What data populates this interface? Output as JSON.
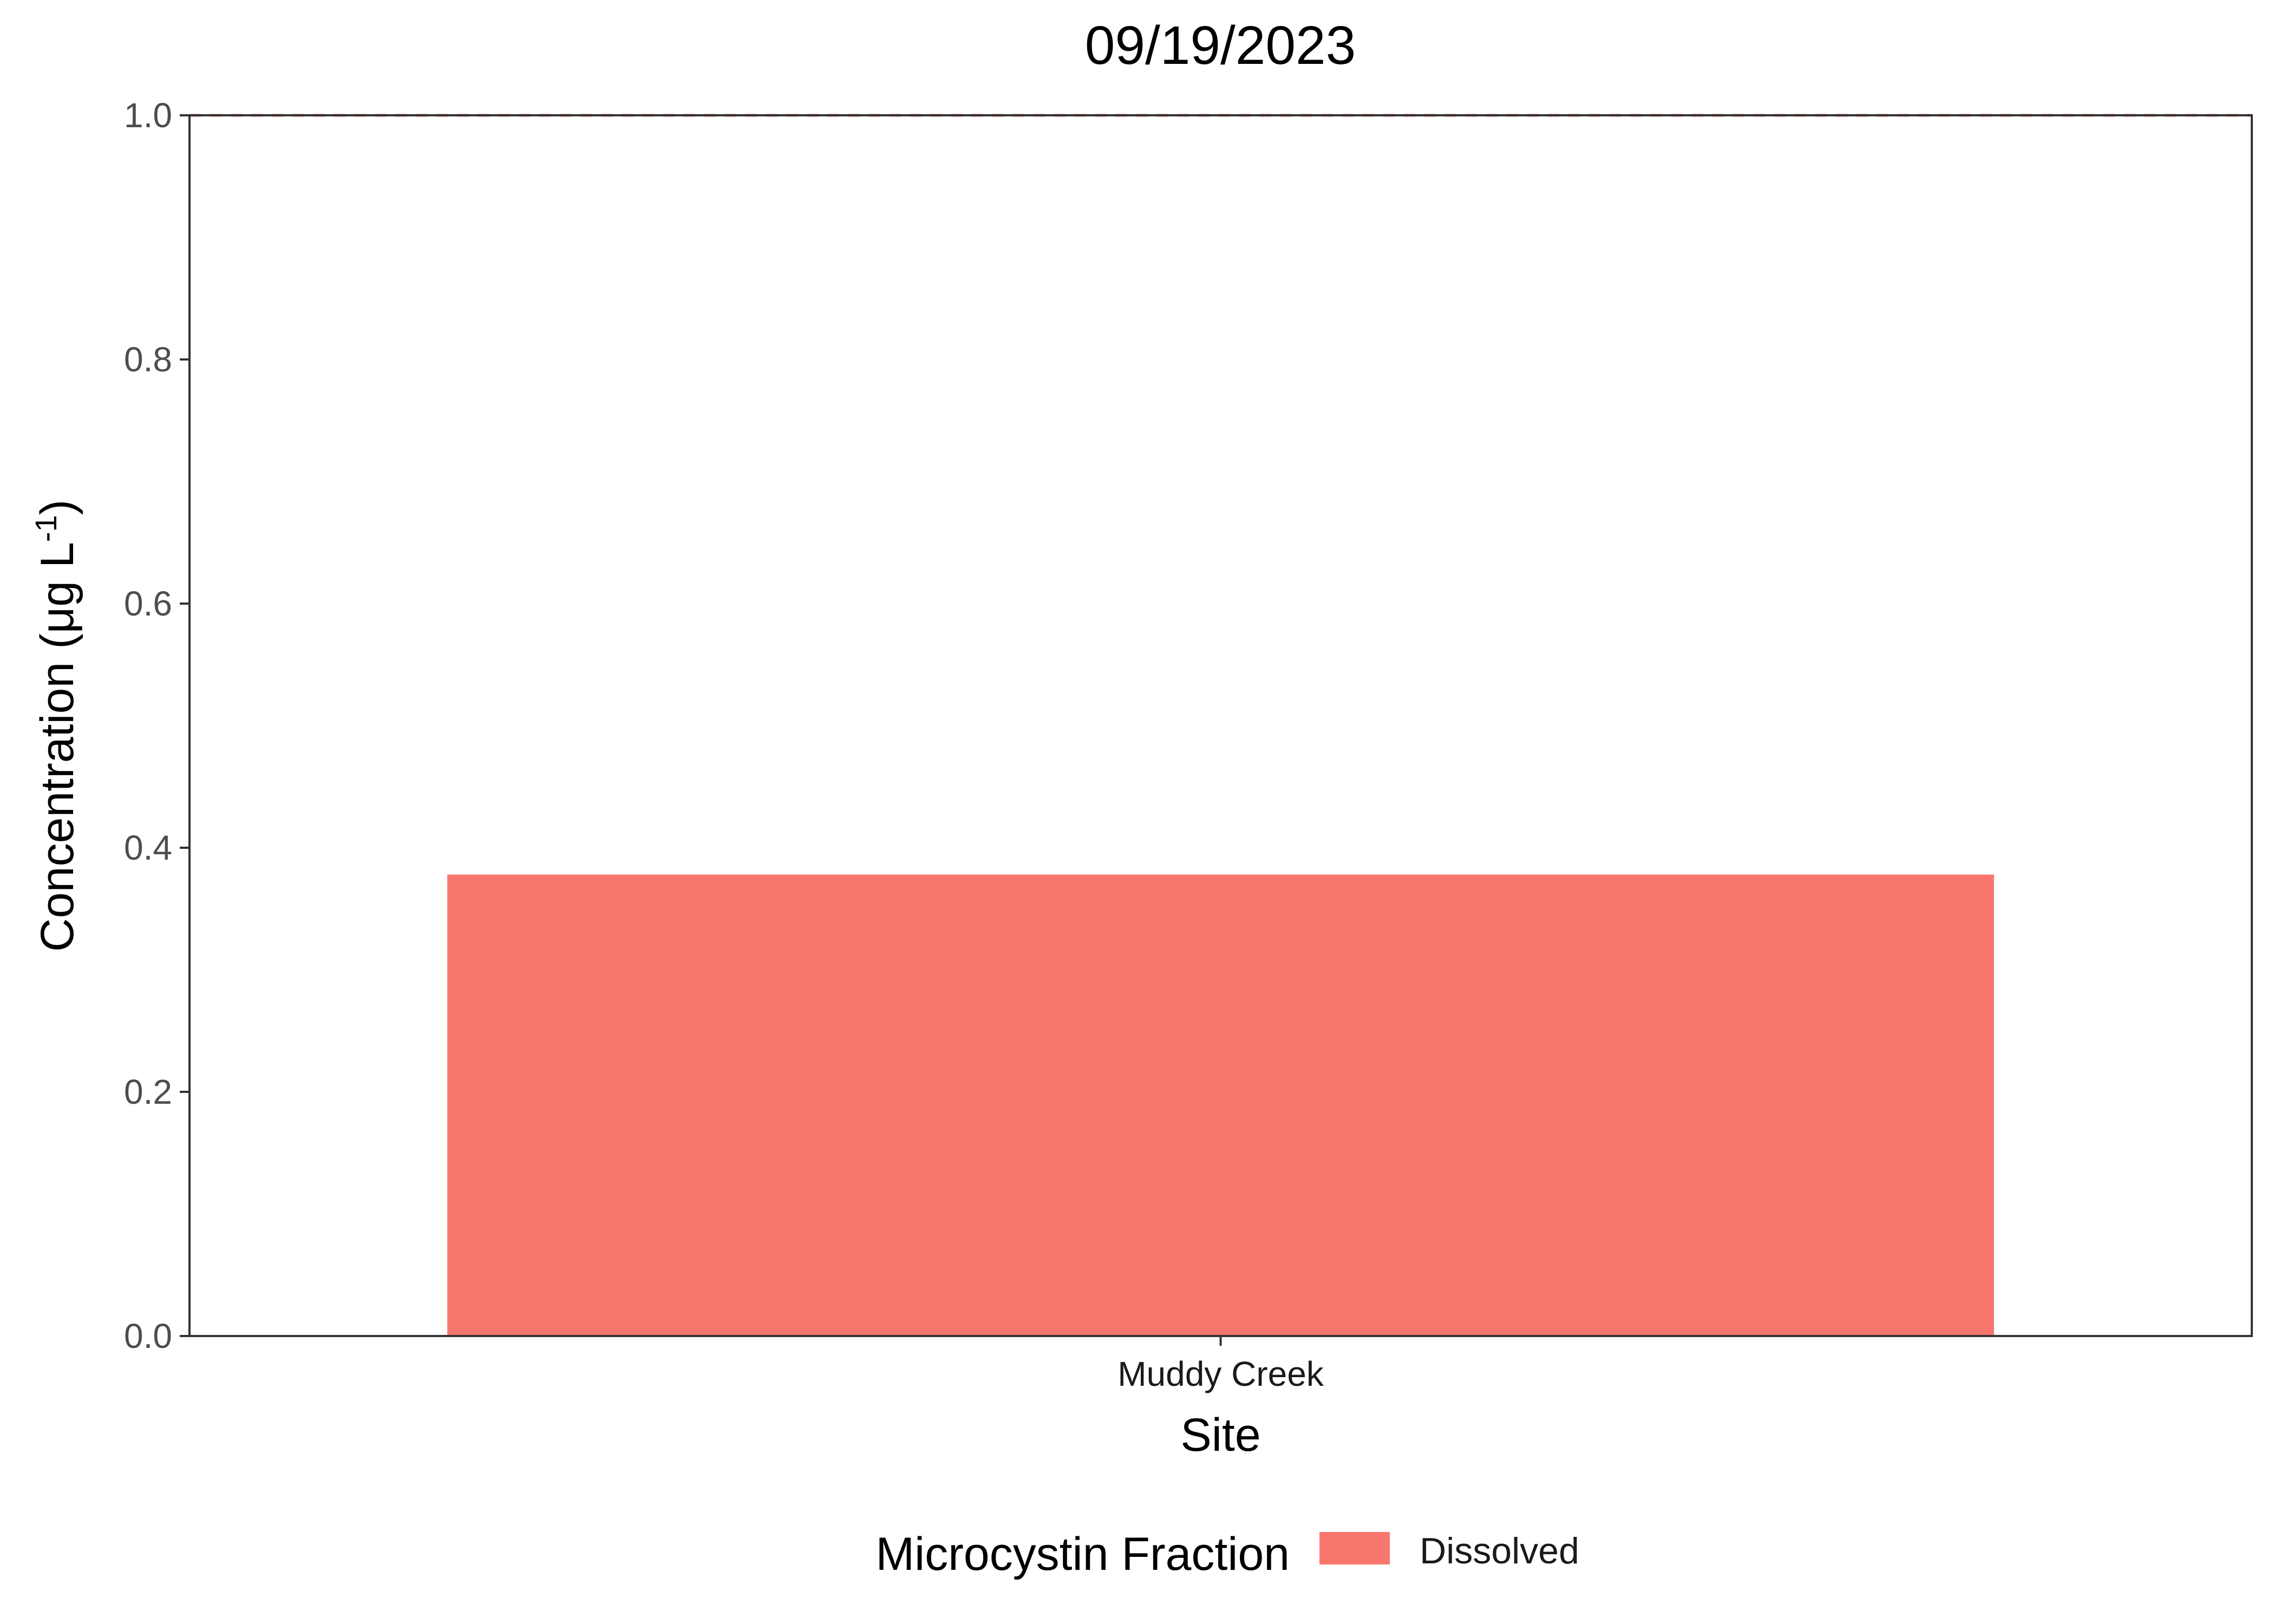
{
  "chart_data": {
    "type": "bar",
    "title": "09/19/2023",
    "xlabel": "Site",
    "ylabel": "Concentration (μg L⁻¹)",
    "ylabel_parts": {
      "before": "Concentration (μg L",
      "superscript": "-1",
      "after": ")"
    },
    "categories": [
      "Muddy Creek"
    ],
    "series": [
      {
        "name": "Dissolved",
        "values": [
          0.378
        ]
      }
    ],
    "ylim": [
      0,
      1.0
    ],
    "yticks": [
      0.0,
      0.2,
      0.4,
      0.6,
      0.8,
      1.0
    ],
    "ytick_labels": [
      "0.0",
      "0.2",
      "0.4",
      "0.6",
      "0.8",
      "1.0"
    ],
    "reference_line": {
      "y": 1.0,
      "style": "dashed",
      "color": "#F8766D"
    },
    "legend": {
      "title": "Microcystin Fraction",
      "position": "bottom",
      "entries": [
        {
          "label": "Dissolved",
          "color": "#F8766D"
        }
      ]
    },
    "colors": {
      "bar": "#F8766D",
      "axis": "#333333"
    },
    "grid": false
  }
}
